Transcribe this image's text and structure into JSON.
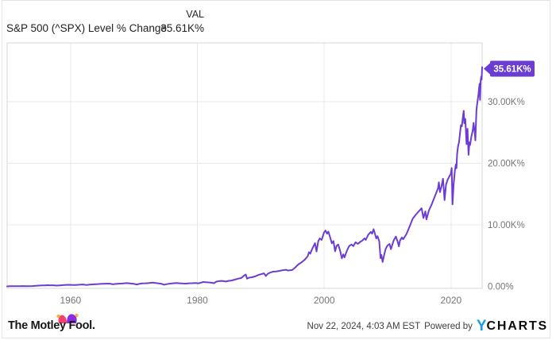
{
  "header": {
    "series_label": "S&P 500 (^SPX) Level % Change",
    "val_label": "VAL",
    "val_value": "35.61K%"
  },
  "chart_data": {
    "type": "line",
    "title": "S&P 500 (^SPX) Level % Change",
    "xlabel": "",
    "ylabel": "",
    "x_range": [
      1950,
      2024.9
    ],
    "y_range_k_percent": [
      -0.4,
      39.6
    ],
    "grid": true,
    "legend_position": "none",
    "y_label_side": "right",
    "y_unit": "K% (thousands of percent)",
    "x_ticks": [
      {
        "value": 1960,
        "label": "1960"
      },
      {
        "value": 1980,
        "label": "1980"
      },
      {
        "value": 2000,
        "label": "2000"
      },
      {
        "value": 2020,
        "label": "2020"
      }
    ],
    "y_ticks": [
      {
        "value": 0,
        "label": "0.00%",
        "gridline": false
      },
      {
        "value": 10,
        "label": "10.00K%",
        "gridline": true
      },
      {
        "value": 20,
        "label": "20.00K%",
        "gridline": true
      },
      {
        "value": 30,
        "label": "30.00K%",
        "gridline": true
      }
    ],
    "series": [
      {
        "name": "S&P 500 (^SPX) Level % Change",
        "color": "#6b3dd2",
        "end_label": "35.61K%",
        "end_value_k_percent": 35.61,
        "points": [
          [
            1950,
            0.005
          ],
          [
            1950.5,
            0.02
          ],
          [
            1951,
            0.03
          ],
          [
            1951.5,
            0.035
          ],
          [
            1952,
            0.042
          ],
          [
            1952.5,
            0.047
          ],
          [
            1953,
            0.045
          ],
          [
            1953.6,
            0.036
          ],
          [
            1954,
            0.055
          ],
          [
            1954.5,
            0.085
          ],
          [
            1955,
            0.125
          ],
          [
            1955.4,
            0.155
          ],
          [
            1955.9,
            0.17
          ],
          [
            1956.3,
            0.19
          ],
          [
            1956.8,
            0.175
          ],
          [
            1957.3,
            0.18
          ],
          [
            1957.8,
            0.134
          ],
          [
            1958.3,
            0.165
          ],
          [
            1958.8,
            0.21
          ],
          [
            1959.3,
            0.245
          ],
          [
            1959.8,
            0.255
          ],
          [
            1960.3,
            0.235
          ],
          [
            1960.8,
            0.23
          ],
          [
            1961.4,
            0.275
          ],
          [
            1961.95,
            0.31
          ],
          [
            1962.2,
            0.27
          ],
          [
            1962.5,
            0.214
          ],
          [
            1963,
            0.28
          ],
          [
            1963.5,
            0.32
          ],
          [
            1964,
            0.355
          ],
          [
            1964.5,
            0.39
          ],
          [
            1965,
            0.42
          ],
          [
            1965.5,
            0.44
          ],
          [
            1966.1,
            0.455
          ],
          [
            1966.7,
            0.34
          ],
          [
            1967.1,
            0.4
          ],
          [
            1967.6,
            0.44
          ],
          [
            1968.1,
            0.465
          ],
          [
            1968.9,
            0.525
          ],
          [
            1969.5,
            0.46
          ],
          [
            1970,
            0.4
          ],
          [
            1970.45,
            0.315
          ],
          [
            1970.9,
            0.43
          ],
          [
            1971.3,
            0.49
          ],
          [
            1971.8,
            0.5
          ],
          [
            1972.3,
            0.535
          ],
          [
            1972.95,
            0.61
          ],
          [
            1973.4,
            0.54
          ],
          [
            1973.9,
            0.49
          ],
          [
            1974.3,
            0.43
          ],
          [
            1974.75,
            0.275
          ],
          [
            1975.1,
            0.35
          ],
          [
            1975.5,
            0.42
          ],
          [
            1976,
            0.49
          ],
          [
            1976.7,
            0.545
          ],
          [
            1977.2,
            0.5
          ],
          [
            1977.8,
            0.47
          ],
          [
            1978.2,
            0.45
          ],
          [
            1978.7,
            0.5
          ],
          [
            1979.2,
            0.515
          ],
          [
            1979.7,
            0.55
          ],
          [
            1980.2,
            0.49
          ],
          [
            1980.9,
            0.715
          ],
          [
            1981.3,
            0.68
          ],
          [
            1981.8,
            0.64
          ],
          [
            1982.3,
            0.58
          ],
          [
            1982.6,
            0.515
          ],
          [
            1983,
            0.78
          ],
          [
            1983.5,
            0.86
          ],
          [
            1983.9,
            0.89
          ],
          [
            1984.5,
            0.79
          ],
          [
            1984.95,
            0.9
          ],
          [
            1985.4,
            0.95
          ],
          [
            1985.9,
            1.1
          ],
          [
            1986.4,
            1.25
          ],
          [
            1986.9,
            1.35
          ],
          [
            1987.3,
            1.7
          ],
          [
            1987.62,
            1.92
          ],
          [
            1987.82,
            1.25
          ],
          [
            1988.1,
            1.4
          ],
          [
            1988.6,
            1.48
          ],
          [
            1989.1,
            1.62
          ],
          [
            1989.6,
            1.85
          ],
          [
            1990,
            1.97
          ],
          [
            1990.5,
            2.11
          ],
          [
            1990.8,
            1.68
          ],
          [
            1991.1,
            2.05
          ],
          [
            1991.5,
            2.25
          ],
          [
            1991.95,
            2.4
          ],
          [
            1992.4,
            2.43
          ],
          [
            1992.95,
            2.51
          ],
          [
            1993.4,
            2.62
          ],
          [
            1993.95,
            2.7
          ],
          [
            1994.3,
            2.58
          ],
          [
            1994.95,
            2.66
          ],
          [
            1995.4,
            3.05
          ],
          [
            1995.95,
            3.6
          ],
          [
            1996.4,
            3.9
          ],
          [
            1996.95,
            4.35
          ],
          [
            1997.4,
            4.9
          ],
          [
            1997.6,
            5.55
          ],
          [
            1997.8,
            5.3
          ],
          [
            1997.95,
            5.72
          ],
          [
            1998.2,
            6.3
          ],
          [
            1998.55,
            7.02
          ],
          [
            1998.78,
            5.66
          ],
          [
            1999.05,
            7.3
          ],
          [
            1999.3,
            7.8
          ],
          [
            1999.6,
            7.55
          ],
          [
            1999.95,
            8.72
          ],
          [
            2000.2,
            9.07
          ],
          [
            2000.45,
            8.55
          ],
          [
            2000.65,
            8.9
          ],
          [
            2000.95,
            7.9
          ],
          [
            2001.2,
            7.0
          ],
          [
            2001.45,
            7.35
          ],
          [
            2001.72,
            5.7
          ],
          [
            2001.95,
            6.6
          ],
          [
            2002.2,
            6.8
          ],
          [
            2002.5,
            5.8
          ],
          [
            2002.78,
            4.56
          ],
          [
            2003,
            5.2
          ],
          [
            2003.2,
            4.71
          ],
          [
            2003.6,
            5.85
          ],
          [
            2003.95,
            6.57
          ],
          [
            2004.3,
            6.8
          ],
          [
            2004.6,
            6.55
          ],
          [
            2004.95,
            7.17
          ],
          [
            2005.3,
            6.9
          ],
          [
            2005.7,
            7.25
          ],
          [
            2005.95,
            7.39
          ],
          [
            2006.35,
            7.8
          ],
          [
            2006.55,
            7.55
          ],
          [
            2006.95,
            8.41
          ],
          [
            2007.35,
            8.85
          ],
          [
            2007.55,
            8.55
          ],
          [
            2007.78,
            9.29
          ],
          [
            2007.95,
            8.71
          ],
          [
            2008.2,
            7.8
          ],
          [
            2008.4,
            8.15
          ],
          [
            2008.68,
            7.3
          ],
          [
            2008.88,
            4.6
          ],
          [
            2009.02,
            5.1
          ],
          [
            2009.2,
            3.96
          ],
          [
            2009.5,
            5.3
          ],
          [
            2009.7,
            6.1
          ],
          [
            2009.95,
            6.59
          ],
          [
            2010.3,
            6.9
          ],
          [
            2010.52,
            6.05
          ],
          [
            2010.95,
            7.45
          ],
          [
            2011.3,
            8.09
          ],
          [
            2011.6,
            7.2
          ],
          [
            2011.77,
            6.5
          ],
          [
            2011.95,
            7.45
          ],
          [
            2012.25,
            7.95
          ],
          [
            2012.45,
            7.65
          ],
          [
            2012.95,
            8.46
          ],
          [
            2013.3,
            9.3
          ],
          [
            2013.95,
            10.99
          ],
          [
            2014.4,
            11.6
          ],
          [
            2014.95,
            12.25
          ],
          [
            2015.35,
            12.69
          ],
          [
            2015.65,
            11.11
          ],
          [
            2015.95,
            12.17
          ],
          [
            2016.12,
            10.88
          ],
          [
            2016.5,
            12.3
          ],
          [
            2016.95,
            13.33
          ],
          [
            2017.4,
            14.5
          ],
          [
            2017.95,
            15.95
          ],
          [
            2018.08,
            16.9
          ],
          [
            2018.25,
            15.3
          ],
          [
            2018.5,
            16.3
          ],
          [
            2018.72,
            17.49
          ],
          [
            2018.97,
            14.01
          ],
          [
            2019.2,
            16.5
          ],
          [
            2019.45,
            17.3
          ],
          [
            2019.7,
            17.8
          ],
          [
            2019.95,
            18.29
          ],
          [
            2020.1,
            19.22
          ],
          [
            2020.23,
            13.33
          ],
          [
            2020.4,
            16.5
          ],
          [
            2020.6,
            18.8
          ],
          [
            2020.75,
            19.8
          ],
          [
            2020.85,
            19.2
          ],
          [
            2020.95,
            21.5
          ],
          [
            2021.1,
            22.8
          ],
          [
            2021.25,
            23.4
          ],
          [
            2021.4,
            24.8
          ],
          [
            2021.55,
            26.2
          ],
          [
            2021.7,
            26.0
          ],
          [
            2021.85,
            27.3
          ],
          [
            2022.0,
            28.51
          ],
          [
            2022.1,
            26.5
          ],
          [
            2022.25,
            27.2
          ],
          [
            2022.45,
            23.1
          ],
          [
            2022.6,
            25.6
          ],
          [
            2022.76,
            21.37
          ],
          [
            2022.9,
            23.4
          ],
          [
            2023.0,
            22.95
          ],
          [
            2023.2,
            24.3
          ],
          [
            2023.4,
            25.2
          ],
          [
            2023.56,
            26.54
          ],
          [
            2023.75,
            24.8
          ],
          [
            2023.83,
            23.71
          ],
          [
            2024.0,
            28.53
          ],
          [
            2024.1,
            29.5
          ],
          [
            2024.22,
            30.43
          ],
          [
            2024.32,
            31.2
          ],
          [
            2024.42,
            32.3
          ],
          [
            2024.5,
            32.91
          ],
          [
            2024.58,
            30.3
          ],
          [
            2024.68,
            33.5
          ],
          [
            2024.76,
            34.09
          ],
          [
            2024.82,
            33.6
          ],
          [
            2024.9,
            35.61
          ]
        ]
      }
    ],
    "colors": {
      "line": "#6b3dd2",
      "grid": "#e8e8e8",
      "plot_border": "#d7d7d7",
      "tick_label": "#757575",
      "badge_bg": "#6b3dd2",
      "badge_text": "#ffffff"
    }
  },
  "footer": {
    "motley_fool": "The Motley Fool.",
    "timestamp": "Nov 22, 2024, 4:03 AM EST",
    "powered_by": "Powered by",
    "brand_y": "Y",
    "brand_rest": "CHARTS",
    "brand_colors": {
      "ycharts_blue": "#1c9bea",
      "fool_pink": "#f4426e",
      "fool_purple": "#8a2ce0",
      "fool_bell": "#ffaf2e"
    }
  }
}
